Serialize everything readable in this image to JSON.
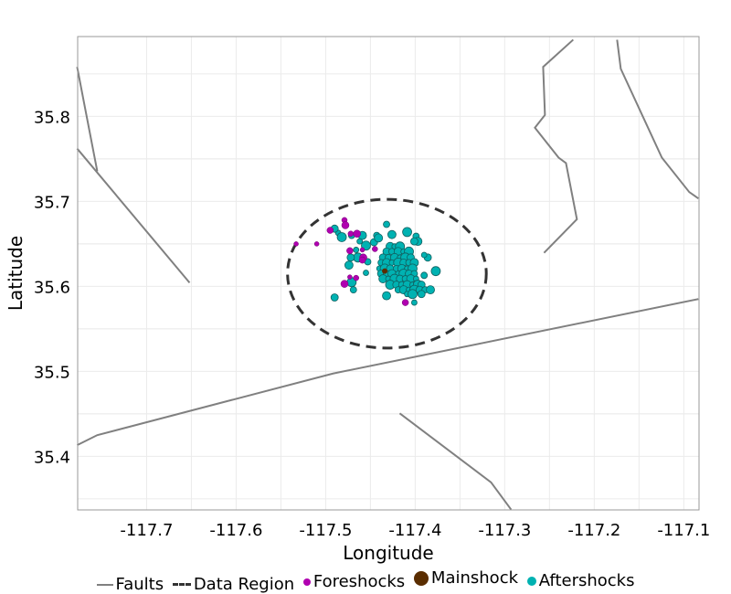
{
  "chart_data": {
    "type": "scatter",
    "xlabel": "Longitude",
    "ylabel": "Latitude",
    "xlim": [
      -117.777,
      -117.083
    ],
    "ylim": [
      35.337,
      35.894
    ],
    "xticks": [
      -117.7,
      -117.6,
      -117.5,
      -117.4,
      -117.3,
      -117.2,
      -117.1
    ],
    "xtick_labels": [
      "-117.7",
      "-117.6",
      "-117.5",
      "-117.4",
      "-117.3",
      "-117.2",
      "-117.1"
    ],
    "yticks": [
      35.4,
      35.5,
      35.6,
      35.7,
      35.8
    ],
    "ytick_labels": [
      "35.4",
      "35.5",
      "35.6",
      "35.7",
      "35.8"
    ],
    "grid": true,
    "legend_placement": "bottom",
    "colors": {
      "faults": "#808080",
      "region": "#333333",
      "foreshocks": "#b000b0",
      "mainshock": "#5a2d00",
      "aftershocks": "#00b2b2"
    },
    "legend": [
      "Faults",
      "Data Region",
      "Foreshocks",
      "Mainshock",
      "Aftershocks"
    ],
    "faults": [
      [
        [
          -117.7776,
          35.8583
        ],
        [
          -117.7694,
          35.8134
        ],
        [
          -117.7551,
          35.7355
        ]
      ],
      [
        [
          -117.7776,
          35.7622
        ],
        [
          -117.652,
          35.6043
        ]
      ],
      [
        [
          -117.7776,
          35.4132
        ],
        [
          -117.7551,
          35.425
        ],
        [
          -117.4918,
          35.4975
        ],
        [
          -117.0837,
          35.5851
        ]
      ],
      [
        [
          -117.4173,
          35.4506
        ],
        [
          -117.3153,
          35.3695
        ],
        [
          -117.2929,
          35.3375
        ]
      ],
      [
        [
          -117.2235,
          35.8903
        ],
        [
          -117.2571,
          35.8583
        ],
        [
          -117.2551,
          35.8017
        ],
        [
          -117.2663,
          35.7868
        ],
        [
          -117.2398,
          35.7515
        ],
        [
          -117.2316,
          35.7451
        ],
        [
          -117.2194,
          35.679
        ],
        [
          -117.2561,
          35.6395
        ]
      ],
      [
        [
          -117.1745,
          35.8903
        ],
        [
          -117.1704,
          35.8561
        ],
        [
          -117.1245,
          35.7515
        ],
        [
          -117.0939,
          35.711
        ],
        [
          -117.0837,
          35.7035
        ]
      ]
    ],
    "data_region": {
      "center": [
        -117.4316,
        35.615
      ],
      "semi_axes_deg": [
        0.111,
        0.0875
      ]
    },
    "mainshock": [
      -117.434,
      35.618
    ],
    "foreshocks": [
      [
        -117.479,
        35.678
      ],
      [
        -117.478,
        35.672
      ],
      [
        -117.495,
        35.666
      ],
      [
        -117.51,
        35.65
      ],
      [
        -117.472,
        35.662
      ],
      [
        -117.465,
        35.662
      ],
      [
        -117.473,
        35.642
      ],
      [
        -117.459,
        35.643
      ],
      [
        -117.445,
        35.644
      ],
      [
        -117.458,
        35.634
      ],
      [
        -117.459,
        35.631
      ],
      [
        -117.473,
        35.611
      ],
      [
        -117.466,
        35.61
      ],
      [
        -117.479,
        35.603
      ],
      [
        -117.411,
        35.581
      ],
      [
        -117.533,
        35.65
      ]
    ],
    "aftershocks": [
      [
        -117.432,
        35.673
      ],
      [
        -117.426,
        35.661
      ],
      [
        -117.486,
        35.663
      ],
      [
        -117.482,
        35.658
      ],
      [
        -117.49,
        35.668
      ],
      [
        -117.471,
        35.66
      ],
      [
        -117.459,
        35.66
      ],
      [
        -117.462,
        35.653
      ],
      [
        -117.455,
        35.648
      ],
      [
        -117.446,
        35.652
      ],
      [
        -117.443,
        35.66
      ],
      [
        -117.441,
        35.657
      ],
      [
        -117.466,
        35.643
      ],
      [
        -117.464,
        35.634
      ],
      [
        -117.472,
        35.634
      ],
      [
        -117.453,
        35.629
      ],
      [
        -117.474,
        35.625
      ],
      [
        -117.455,
        35.616
      ],
      [
        -117.471,
        35.605
      ],
      [
        -117.49,
        35.587
      ],
      [
        -117.469,
        35.596
      ],
      [
        -117.432,
        35.589
      ],
      [
        -117.401,
        35.581
      ],
      [
        -117.377,
        35.618
      ],
      [
        -117.386,
        35.634
      ],
      [
        -117.399,
        35.659
      ],
      [
        -117.397,
        35.653
      ],
      [
        -117.39,
        35.637
      ],
      [
        -117.409,
        35.664
      ],
      [
        -117.401,
        35.653
      ],
      [
        -117.39,
        35.613
      ],
      [
        -117.428,
        35.647
      ],
      [
        -117.423,
        35.647
      ],
      [
        -117.417,
        35.647
      ],
      [
        -117.432,
        35.641
      ],
      [
        -117.426,
        35.641
      ],
      [
        -117.419,
        35.641
      ],
      [
        -117.413,
        35.641
      ],
      [
        -117.407,
        35.641
      ],
      [
        -117.436,
        35.634
      ],
      [
        -117.43,
        35.634
      ],
      [
        -117.423,
        35.634
      ],
      [
        -117.417,
        35.634
      ],
      [
        -117.411,
        35.634
      ],
      [
        -117.405,
        35.634
      ],
      [
        -117.438,
        35.628
      ],
      [
        -117.432,
        35.628
      ],
      [
        -117.426,
        35.628
      ],
      [
        -117.419,
        35.628
      ],
      [
        -117.413,
        35.628
      ],
      [
        -117.407,
        35.628
      ],
      [
        -117.401,
        35.628
      ],
      [
        -117.44,
        35.621
      ],
      [
        -117.434,
        35.621
      ],
      [
        -117.428,
        35.621
      ],
      [
        -117.421,
        35.621
      ],
      [
        -117.415,
        35.621
      ],
      [
        -117.409,
        35.621
      ],
      [
        -117.403,
        35.621
      ],
      [
        -117.438,
        35.615
      ],
      [
        -117.432,
        35.615
      ],
      [
        -117.426,
        35.615
      ],
      [
        -117.419,
        35.615
      ],
      [
        -117.413,
        35.615
      ],
      [
        -117.407,
        35.615
      ],
      [
        -117.401,
        35.615
      ],
      [
        -117.436,
        35.609
      ],
      [
        -117.43,
        35.609
      ],
      [
        -117.423,
        35.609
      ],
      [
        -117.417,
        35.609
      ],
      [
        -117.411,
        35.609
      ],
      [
        -117.405,
        35.609
      ],
      [
        -117.399,
        35.609
      ],
      [
        -117.428,
        35.602
      ],
      [
        -117.421,
        35.602
      ],
      [
        -117.415,
        35.602
      ],
      [
        -117.409,
        35.602
      ],
      [
        -117.403,
        35.602
      ],
      [
        -117.397,
        35.602
      ],
      [
        -117.393,
        35.602
      ],
      [
        -117.419,
        35.596
      ],
      [
        -117.413,
        35.596
      ],
      [
        -117.407,
        35.596
      ],
      [
        -117.401,
        35.596
      ],
      [
        -117.395,
        35.596
      ],
      [
        -117.389,
        35.596
      ],
      [
        -117.383,
        35.596
      ],
      [
        -117.409,
        35.591
      ],
      [
        -117.403,
        35.591
      ],
      [
        -117.393,
        35.591
      ]
    ]
  }
}
